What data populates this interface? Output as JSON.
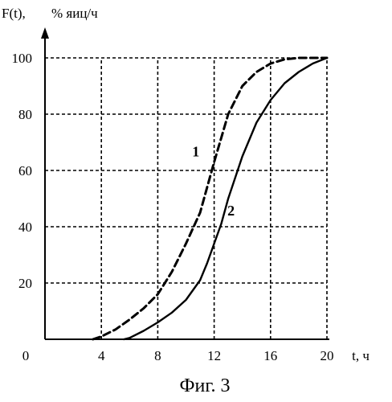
{
  "caption": "Фиг. 3",
  "chart_data": {
    "type": "line",
    "ylabel_prefix": "F(t),",
    "ylabel_unit": "% яиц/ч",
    "xlabel": "t, ч",
    "origin_label": "0",
    "xlim": [
      0,
      20
    ],
    "ylim": [
      0,
      100
    ],
    "x_ticks": [
      {
        "value": 4,
        "label": "4"
      },
      {
        "value": 8,
        "label": "8"
      },
      {
        "value": 12,
        "label": "12"
      },
      {
        "value": 16,
        "label": "16"
      },
      {
        "value": 20,
        "label": "20"
      }
    ],
    "y_ticks": [
      {
        "value": 20,
        "label": "20"
      },
      {
        "value": 40,
        "label": "40"
      },
      {
        "value": 60,
        "label": "60"
      },
      {
        "value": 80,
        "label": "80"
      },
      {
        "value": 100,
        "label": "100"
      }
    ],
    "grid": true,
    "series": [
      {
        "name": "1",
        "style": "dashed",
        "color": "#000000",
        "label_at": {
          "x": 10.7,
          "y": 65
        },
        "points": [
          {
            "x": 3.4,
            "y": 0
          },
          {
            "x": 4,
            "y": 1
          },
          {
            "x": 5,
            "y": 3.5
          },
          {
            "x": 6,
            "y": 7
          },
          {
            "x": 7,
            "y": 11
          },
          {
            "x": 8,
            "y": 16
          },
          {
            "x": 9,
            "y": 24
          },
          {
            "x": 10,
            "y": 34
          },
          {
            "x": 11,
            "y": 45
          },
          {
            "x": 12,
            "y": 63
          },
          {
            "x": 13,
            "y": 80
          },
          {
            "x": 14,
            "y": 90
          },
          {
            "x": 15,
            "y": 95
          },
          {
            "x": 16,
            "y": 98
          },
          {
            "x": 17,
            "y": 99.5
          },
          {
            "x": 18,
            "y": 100
          },
          {
            "x": 20,
            "y": 100
          }
        ]
      },
      {
        "name": "2",
        "style": "solid",
        "color": "#000000",
        "label_at": {
          "x": 13.2,
          "y": 44
        },
        "points": [
          {
            "x": 5.6,
            "y": 0
          },
          {
            "x": 6,
            "y": 0.5
          },
          {
            "x": 7,
            "y": 3
          },
          {
            "x": 8,
            "y": 6
          },
          {
            "x": 9,
            "y": 9.5
          },
          {
            "x": 10,
            "y": 14
          },
          {
            "x": 11,
            "y": 21
          },
          {
            "x": 11.5,
            "y": 27
          },
          {
            "x": 12,
            "y": 34
          },
          {
            "x": 12.5,
            "y": 41
          },
          {
            "x": 13,
            "y": 50
          },
          {
            "x": 14,
            "y": 65
          },
          {
            "x": 15,
            "y": 77
          },
          {
            "x": 16,
            "y": 85
          },
          {
            "x": 17,
            "y": 91
          },
          {
            "x": 18,
            "y": 95
          },
          {
            "x": 19,
            "y": 98
          },
          {
            "x": 20,
            "y": 100
          }
        ]
      }
    ]
  }
}
